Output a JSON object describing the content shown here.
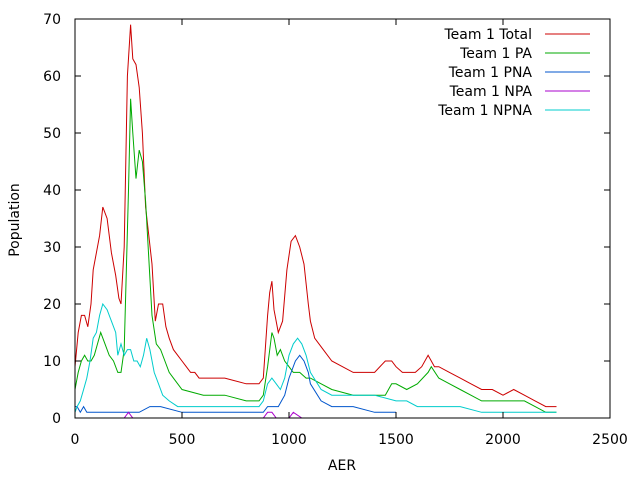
{
  "chart_data": {
    "type": "line",
    "title": "",
    "xlabel": "AER",
    "ylabel": "Population",
    "xlim": [
      0,
      2500
    ],
    "ylim": [
      0,
      70
    ],
    "xticks": [
      0,
      500,
      1000,
      1500,
      2000,
      2500
    ],
    "yticks": [
      0,
      10,
      20,
      30,
      40,
      50,
      60,
      70
    ],
    "grid": false,
    "legend_position": "top-right",
    "series": [
      {
        "name": "Team 1 Total",
        "color": "#cc0000",
        "x": [
          0,
          15,
          30,
          45,
          60,
          75,
          85,
          100,
          115,
          130,
          150,
          170,
          190,
          205,
          215,
          230,
          245,
          260,
          270,
          285,
          300,
          315,
          330,
          345,
          360,
          375,
          390,
          410,
          425,
          440,
          460,
          480,
          500,
          520,
          540,
          560,
          580,
          600,
          700,
          800,
          860,
          880,
          900,
          910,
          920,
          930,
          950,
          970,
          990,
          1010,
          1030,
          1050,
          1070,
          1090,
          1100,
          1120,
          1140,
          1160,
          1200,
          1300,
          1350,
          1400,
          1450,
          1480,
          1500,
          1530,
          1560,
          1590,
          1620,
          1650,
          1665,
          1680,
          1700,
          1750,
          1800,
          1850,
          1900,
          1950,
          2000,
          2050,
          2100,
          2150,
          2200,
          2250
        ],
        "y": [
          9,
          15,
          18,
          18,
          16,
          20,
          26,
          29,
          32,
          37,
          35,
          29,
          25,
          21,
          20,
          30,
          60,
          69,
          63,
          62,
          58,
          50,
          37,
          32,
          27,
          17,
          20,
          20,
          16,
          14,
          12,
          11,
          10,
          9,
          8,
          8,
          7,
          7,
          7,
          6,
          6,
          7,
          18,
          22,
          24,
          19,
          15,
          17,
          26,
          31,
          32,
          30,
          27,
          20,
          17,
          14,
          13,
          12,
          10,
          8,
          8,
          8,
          10,
          10,
          9,
          8,
          8,
          8,
          9,
          11,
          10,
          9,
          9,
          8,
          7,
          6,
          5,
          5,
          4,
          5,
          4,
          3,
          2,
          2
        ]
      },
      {
        "name": "Team 1 PA",
        "color": "#00aa00",
        "x": [
          0,
          15,
          30,
          45,
          60,
          75,
          90,
          105,
          120,
          140,
          160,
          180,
          200,
          215,
          230,
          250,
          260,
          270,
          285,
          300,
          315,
          330,
          345,
          360,
          380,
          400,
          420,
          440,
          460,
          500,
          600,
          700,
          800,
          860,
          880,
          900,
          920,
          930,
          945,
          960,
          980,
          1000,
          1020,
          1050,
          1080,
          1100,
          1150,
          1200,
          1300,
          1400,
          1450,
          1480,
          1500,
          1550,
          1600,
          1650,
          1665,
          1700,
          1750,
          1800,
          1850,
          1900,
          1950,
          2000,
          2100,
          2150,
          2200,
          2250
        ],
        "y": [
          5,
          8,
          10,
          11,
          10,
          10,
          11,
          13,
          15,
          13,
          11,
          10,
          8,
          8,
          12,
          40,
          56,
          50,
          42,
          47,
          45,
          38,
          28,
          18,
          13,
          12,
          10,
          8,
          7,
          5,
          4,
          4,
          3,
          3,
          4,
          9,
          15,
          14,
          11,
          12,
          10,
          9,
          8,
          8,
          7,
          7,
          6,
          5,
          4,
          4,
          4,
          6,
          6,
          5,
          6,
          8,
          9,
          7,
          6,
          5,
          4,
          3,
          3,
          3,
          3,
          2,
          1,
          1
        ]
      },
      {
        "name": "Team 1 PNA",
        "color": "#0055cc",
        "x": [
          0,
          10,
          25,
          40,
          55,
          70,
          90,
          110,
          150,
          200,
          240,
          300,
          350,
          400,
          500,
          600,
          800,
          880,
          900,
          950,
          980,
          1000,
          1030,
          1050,
          1070,
          1090,
          1100,
          1150,
          1200,
          1300,
          1400,
          1450,
          1500
        ],
        "y": [
          2,
          2,
          1,
          2,
          1,
          1,
          1,
          1,
          1,
          1,
          1,
          1,
          2,
          2,
          1,
          1,
          1,
          1,
          2,
          2,
          4,
          7,
          10,
          11,
          10,
          8,
          6,
          3,
          2,
          2,
          1,
          1,
          1
        ]
      },
      {
        "name": "Team 1 NPA",
        "color": "#aa00cc",
        "x": [
          0,
          200,
          230,
          250,
          270,
          300,
          880,
          900,
          920,
          940,
          1000,
          1020,
          1060,
          1100
        ],
        "y": [
          0,
          0,
          0,
          1,
          0,
          0,
          0,
          1,
          1,
          0,
          0,
          1,
          0,
          0
        ]
      },
      {
        "name": "Team 1 NPNA",
        "color": "#00cccc",
        "x": [
          0,
          10,
          25,
          40,
          55,
          70,
          85,
          100,
          115,
          130,
          150,
          170,
          190,
          200,
          215,
          230,
          245,
          260,
          275,
          290,
          305,
          320,
          335,
          350,
          370,
          390,
          410,
          440,
          480,
          520,
          600,
          700,
          800,
          860,
          880,
          900,
          920,
          940,
          960,
          980,
          1000,
          1020,
          1040,
          1060,
          1080,
          1100,
          1150,
          1200,
          1300,
          1400,
          1500,
          1550,
          1600,
          1650,
          1700,
          1800,
          1900,
          1950,
          2000,
          2050,
          2100,
          2150,
          2200,
          2250
        ],
        "y": [
          1,
          2,
          3,
          5,
          7,
          10,
          14,
          15,
          18,
          20,
          19,
          17,
          15,
          11,
          13,
          11,
          12,
          12,
          10,
          10,
          9,
          11,
          14,
          12,
          8,
          6,
          4,
          3,
          2,
          2,
          2,
          2,
          2,
          2,
          3,
          6,
          7,
          6,
          5,
          7,
          11,
          13,
          14,
          13,
          11,
          8,
          5,
          4,
          4,
          4,
          3,
          3,
          2,
          2,
          2,
          2,
          1,
          1,
          1,
          1,
          1,
          1,
          1,
          1
        ]
      }
    ]
  }
}
